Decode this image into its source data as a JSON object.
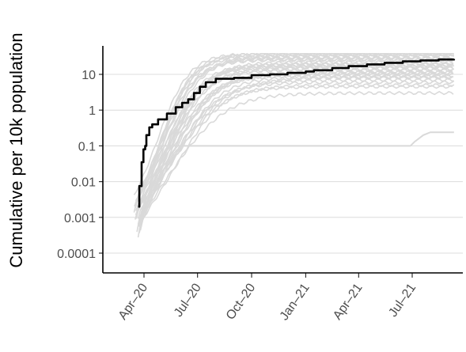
{
  "chart_data": {
    "type": "line",
    "title": "",
    "xlabel": "",
    "ylabel": "Cumulative per 10k population",
    "y_scale": "log10",
    "ylim": [
      3e-05,
      40
    ],
    "xlim": [
      "2020-02-15",
      "2021-09-20"
    ],
    "y_ticks": [
      {
        "value": 0.0001,
        "label": "0.0001"
      },
      {
        "value": 0.001,
        "label": "0.001"
      },
      {
        "value": 0.01,
        "label": "0.01"
      },
      {
        "value": 0.1,
        "label": "0.1"
      },
      {
        "value": 1,
        "label": "1"
      },
      {
        "value": 10,
        "label": "10"
      }
    ],
    "x_ticks": [
      {
        "value": "2020-04-01",
        "label": "Apr–20"
      },
      {
        "value": "2020-07-01",
        "label": "Jul–20"
      },
      {
        "value": "2020-10-01",
        "label": "Oct–20"
      },
      {
        "value": "2021-01-01",
        "label": "Jan–21"
      },
      {
        "value": "2021-04-01",
        "label": "Apr–21"
      },
      {
        "value": "2021-07-01",
        "label": "Jul–21"
      }
    ],
    "grid": {
      "horizontal_major": true,
      "vertical": false
    },
    "legend": "none",
    "highlight_color": "#000000",
    "background_series_color": "#d9d9d9",
    "highlight_series": {
      "points": [
        [
          "2020-03-22",
          0.002
        ],
        [
          "2020-03-24",
          0.0075
        ],
        [
          "2020-03-27",
          0.0075
        ],
        [
          "2020-03-28",
          0.035
        ],
        [
          "2020-03-31",
          0.08
        ],
        [
          "2020-04-03",
          0.1
        ],
        [
          "2020-04-05",
          0.2
        ],
        [
          "2020-04-10",
          0.33
        ],
        [
          "2020-04-15",
          0.4
        ],
        [
          "2020-04-25",
          0.55
        ],
        [
          "2020-05-10",
          0.8
        ],
        [
          "2020-05-25",
          1.2
        ],
        [
          "2020-06-05",
          1.6
        ],
        [
          "2020-06-15",
          2.0
        ],
        [
          "2020-06-25",
          3.0
        ],
        [
          "2020-07-05",
          4.5
        ],
        [
          "2020-07-15",
          6.0
        ],
        [
          "2020-08-01",
          7.5
        ],
        [
          "2020-09-01",
          8.0
        ],
        [
          "2020-10-01",
          9.5
        ],
        [
          "2020-11-01",
          10.0
        ],
        [
          "2020-12-01",
          11.0
        ],
        [
          "2021-01-01",
          12.0
        ],
        [
          "2021-01-15",
          13.0
        ],
        [
          "2021-02-15",
          15.0
        ],
        [
          "2021-03-15",
          17.0
        ],
        [
          "2021-04-15",
          19.0
        ],
        [
          "2021-05-15",
          21.0
        ],
        [
          "2021-06-15",
          23.0
        ],
        [
          "2021-07-15",
          24.5
        ],
        [
          "2021-08-15",
          26.0
        ],
        [
          "2021-09-10",
          27.0
        ]
      ]
    },
    "background_series": [
      {
        "start": "2020-03-15",
        "s0": 0.0015,
        "mid": "2020-05-10",
        "k": 16,
        "end": 35,
        "tail": 1.3
      },
      {
        "start": "2020-03-17",
        "s0": 0.0008,
        "mid": "2020-05-25",
        "k": 15,
        "end": 20,
        "tail": 1.5
      },
      {
        "start": "2020-03-18",
        "s0": 0.003,
        "mid": "2020-05-01",
        "k": 14,
        "end": 40,
        "tail": 1.1
      },
      {
        "start": "2020-03-20",
        "s0": 0.0004,
        "mid": "2020-06-01",
        "k": 18,
        "end": 12,
        "tail": 1.6
      },
      {
        "start": "2020-03-16",
        "s0": 0.002,
        "mid": "2020-05-05",
        "k": 12,
        "end": 30,
        "tail": 1.2
      },
      {
        "start": "2020-03-22",
        "s0": 0.0003,
        "mid": "2020-06-15",
        "k": 20,
        "end": 8,
        "tail": 1.8
      },
      {
        "start": "2020-03-19",
        "s0": 0.001,
        "mid": "2020-05-20",
        "k": 14,
        "end": 18,
        "tail": 1.4
      },
      {
        "start": "2020-03-21",
        "s0": 0.0025,
        "mid": "2020-05-12",
        "k": 13,
        "end": 25,
        "tail": 1.3
      },
      {
        "start": "2020-03-23",
        "s0": 0.0006,
        "mid": "2020-06-10",
        "k": 17,
        "end": 6,
        "tail": 1.7
      },
      {
        "start": "2020-03-25",
        "s0": 0.0005,
        "mid": "2020-06-20",
        "k": 16,
        "end": 4.5,
        "tail": 1.6
      },
      {
        "start": "2020-03-18",
        "s0": 0.0012,
        "mid": "2020-05-18",
        "k": 15,
        "end": 22,
        "tail": 1.2
      },
      {
        "start": "2020-03-24",
        "s0": 0.0009,
        "mid": "2020-05-28",
        "k": 14,
        "end": 14,
        "tail": 1.5
      },
      {
        "start": "2020-03-15",
        "s0": 0.004,
        "mid": "2020-04-28",
        "k": 12,
        "end": 38,
        "tail": 1.1
      },
      {
        "start": "2020-03-26",
        "s0": 0.0004,
        "mid": "2020-06-25",
        "k": 19,
        "end": 3.0,
        "tail": 1.9
      },
      {
        "start": "2020-03-20",
        "s0": 0.0018,
        "mid": "2020-05-08",
        "k": 13,
        "end": 28,
        "tail": 1.2
      },
      {
        "start": "2020-03-22",
        "s0": 0.0007,
        "mid": "2020-06-05",
        "k": 16,
        "end": 10,
        "tail": 1.5
      },
      {
        "start": "2020-03-17",
        "s0": 0.002,
        "mid": "2020-05-15",
        "k": 14,
        "end": 16,
        "tail": 1.3
      },
      {
        "start": "2020-03-28",
        "s0": 0.0015,
        "mid": "2020-06-02",
        "k": 15,
        "end": 9,
        "tail": 1.6
      },
      {
        "start": "2020-03-19",
        "s0": 0.0011,
        "mid": "2020-05-22",
        "k": 15,
        "end": 13,
        "tail": 1.4
      },
      {
        "start": "2020-03-21",
        "s0": 0.003,
        "mid": "2020-05-04",
        "k": 12,
        "end": 32,
        "tail": 1.2
      },
      {
        "start": "2020-03-23",
        "s0": 0.0005,
        "mid": "2020-06-12",
        "k": 18,
        "end": 7,
        "tail": 1.7
      },
      {
        "start": "2020-03-18",
        "s0": 0.0014,
        "mid": "2020-05-14",
        "k": 14,
        "end": 19,
        "tail": 1.3
      },
      {
        "start": "2020-03-25",
        "s0": 0.0008,
        "mid": "2020-05-30",
        "k": 16,
        "end": 11,
        "tail": 1.5
      },
      {
        "start": "2020-03-16",
        "s0": 0.0022,
        "mid": "2020-05-06",
        "k": 13,
        "end": 26,
        "tail": 1.2
      },
      {
        "start": "2020-03-27",
        "s0": 0.0006,
        "mid": "2020-06-18",
        "k": 18,
        "end": 5,
        "tail": 1.8
      },
      {
        "start": "2020-03-20",
        "s0": 0.0013,
        "mid": "2020-05-17",
        "k": 14,
        "end": 17,
        "tail": 1.3
      },
      {
        "start": "2020-03-22",
        "s0": 0.0009,
        "mid": "2020-05-26",
        "k": 15,
        "end": 15,
        "tail": 1.4
      },
      {
        "start": "2020-03-19",
        "s0": 0.0026,
        "mid": "2020-05-02",
        "k": 12,
        "end": 36,
        "tail": 1.1
      },
      {
        "start": "2020-03-24",
        "s0": 0.0004,
        "mid": "2020-06-08",
        "k": 17,
        "end": 8.5,
        "tail": 1.6
      },
      {
        "start": "2020-03-26",
        "s0": 0.0007,
        "mid": "2020-06-01",
        "k": 16,
        "end": 10.5,
        "tail": 1.5
      }
    ],
    "flat_series": {
      "points": [
        [
          "2020-04-20",
          0.1
        ],
        [
          "2021-06-28",
          0.1
        ],
        [
          "2021-07-05",
          0.13
        ],
        [
          "2021-07-20",
          0.2
        ],
        [
          "2021-08-01",
          0.24
        ],
        [
          "2021-09-10",
          0.24
        ]
      ]
    }
  }
}
